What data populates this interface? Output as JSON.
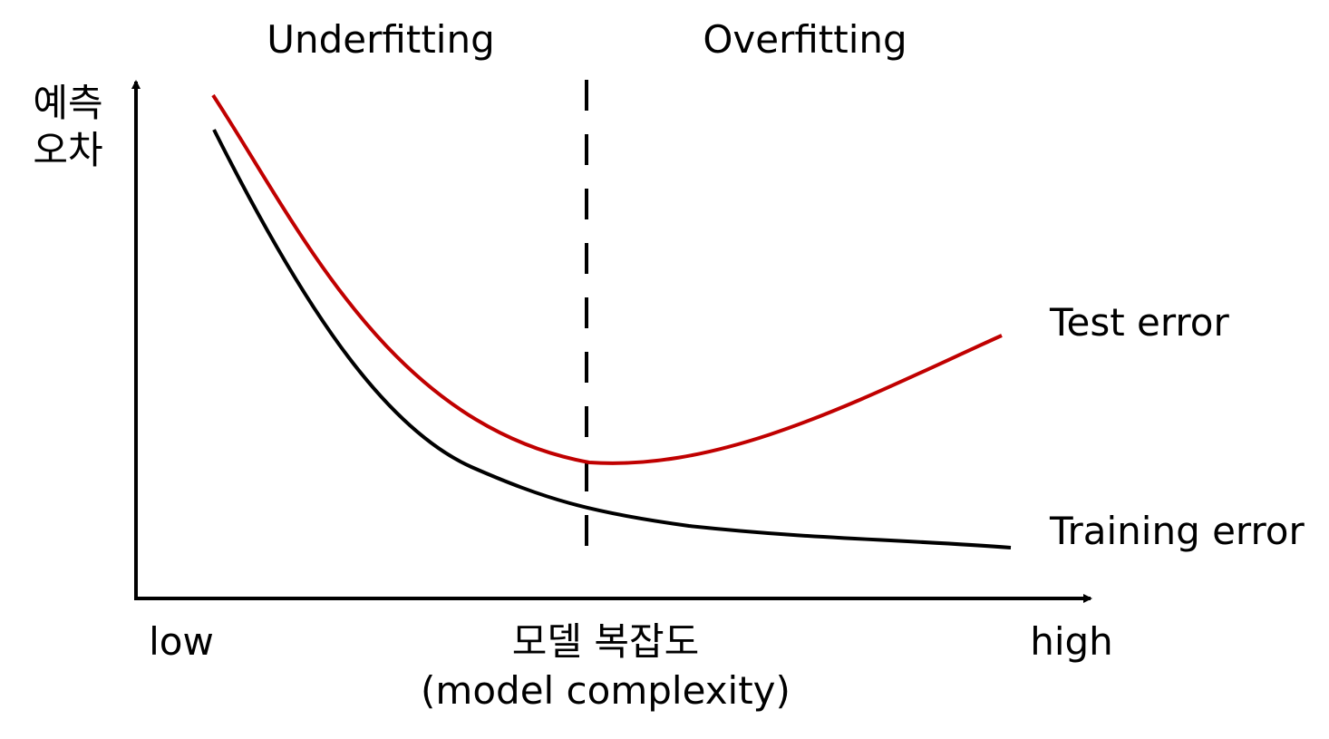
{
  "regions": {
    "left": "Underfitting",
    "right": "Overfitting"
  },
  "y_axis": {
    "label_lines": [
      "예측",
      "오차"
    ]
  },
  "curves": {
    "test": "Test error",
    "training": "Training error"
  },
  "x_axis": {
    "low": "low",
    "label": "모델 복잡도",
    "sublabel": "(model complexity)",
    "high": "high"
  }
}
